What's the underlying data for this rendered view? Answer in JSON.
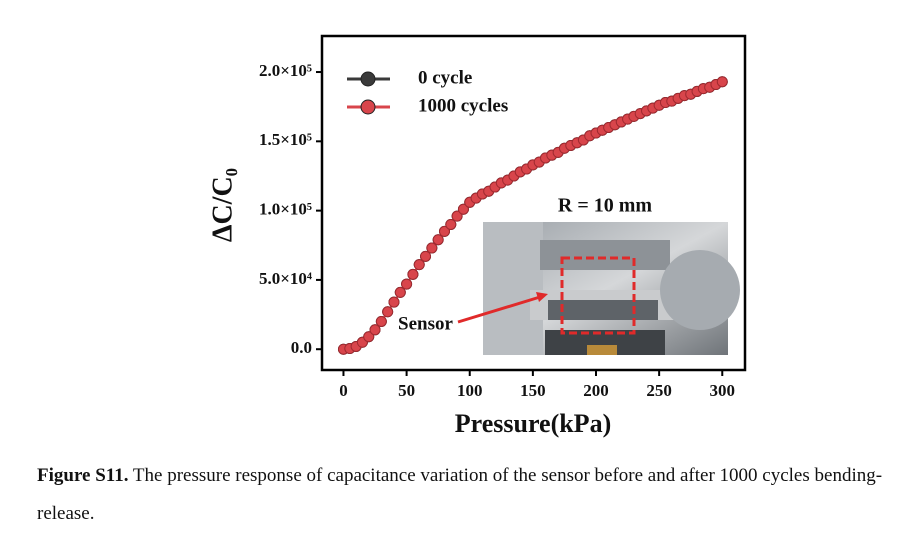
{
  "chart_data": {
    "type": "scatter-line",
    "xlabel": "Pressure(kPa)",
    "ylabel": "ΔC/C₀",
    "x": [
      0,
      5,
      10,
      15,
      20,
      25,
      30,
      35,
      40,
      45,
      50,
      55,
      60,
      65,
      70,
      75,
      80,
      85,
      90,
      95,
      100,
      105,
      110,
      115,
      120,
      125,
      130,
      135,
      140,
      145,
      150,
      155,
      160,
      165,
      170,
      175,
      180,
      185,
      190,
      195,
      200,
      205,
      210,
      215,
      220,
      225,
      230,
      235,
      240,
      245,
      250,
      255,
      260,
      265,
      270,
      275,
      280,
      285,
      290,
      295,
      300
    ],
    "series": [
      {
        "name": "0 cycle",
        "color": "#3a3a3a",
        "values": [
          0,
          500,
          2000,
          5000,
          9000,
          14000,
          20000,
          27000,
          34000,
          41000,
          47000,
          54000,
          61000,
          67000,
          73000,
          79000,
          85000,
          90000,
          96000,
          101000,
          106000,
          109000,
          112000,
          114000,
          117000,
          120000,
          122000,
          125000,
          128000,
          130000,
          133000,
          135000,
          138000,
          140000,
          142000,
          145000,
          147000,
          149000,
          151000,
          154000,
          156000,
          158000,
          160000,
          162000,
          164000,
          166000,
          168000,
          170000,
          172000,
          174000,
          176000,
          178000,
          179000,
          181000,
          183000,
          184000,
          186000,
          188000,
          189000,
          191000,
          193000
        ]
      },
      {
        "name": "1000 cycles",
        "color": "#d8454b",
        "values": [
          0,
          500,
          2000,
          5000,
          9000,
          14000,
          20000,
          27000,
          34000,
          41000,
          47000,
          54000,
          61000,
          67000,
          73000,
          79000,
          85000,
          90000,
          96000,
          101000,
          106000,
          109000,
          112000,
          114000,
          117000,
          120000,
          122000,
          125000,
          128000,
          130000,
          133000,
          135000,
          138000,
          140000,
          142000,
          145000,
          147000,
          149000,
          151000,
          154000,
          156000,
          158000,
          160000,
          162000,
          164000,
          166000,
          168000,
          170000,
          172000,
          174000,
          176000,
          178000,
          179000,
          181000,
          183000,
          184000,
          186000,
          188000,
          189000,
          191000,
          193000
        ]
      }
    ],
    "xlim": [
      -17,
      318
    ],
    "xticks": [
      0,
      50,
      100,
      150,
      200,
      250,
      300
    ],
    "ylim": [
      -15000,
      226000
    ],
    "yticks": [
      {
        "value": 0,
        "label": "0.0"
      },
      {
        "value": 50000,
        "label": "5.0×10⁴"
      },
      {
        "value": 100000,
        "label": "1.0×10⁵"
      },
      {
        "value": 150000,
        "label": "1.5×10⁵"
      },
      {
        "value": 200000,
        "label": "2.0×10⁵"
      }
    ],
    "legend": "upper left",
    "annotations": [
      "R = 10 mm",
      "Sensor"
    ]
  },
  "caption": {
    "label": "Figure S11.",
    "text": "The pressure response of capacitance variation of the sensor before and after 1000 cycles bending-release."
  }
}
